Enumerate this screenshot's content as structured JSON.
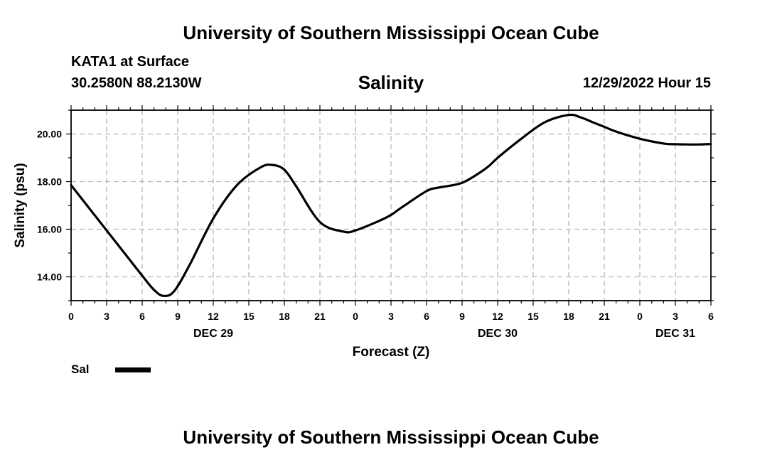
{
  "header": {
    "title": "University of Southern Mississippi Ocean Cube",
    "station": "KATA1 at Surface",
    "coordinates": "30.2580N  88.2130W",
    "datetime": "12/29/2022 Hour 15"
  },
  "footer": {
    "title": "University of Southern Mississippi Ocean Cube"
  },
  "chart_data": {
    "type": "line",
    "title": "Salinity",
    "xlabel": "Forecast (Z)",
    "ylabel": "Salinity (psu)",
    "xlim": [
      0,
      54
    ],
    "ylim": [
      13.0,
      21.0
    ],
    "grid": true,
    "x_tick_step_hours": 3,
    "x_tick_labels": [
      "0",
      "3",
      "6",
      "9",
      "12",
      "15",
      "18",
      "21",
      "0",
      "3",
      "6",
      "9",
      "12",
      "15",
      "18",
      "21",
      "0",
      "3",
      "6"
    ],
    "day_labels": [
      {
        "hour": 12,
        "label": "DEC 29"
      },
      {
        "hour": 36,
        "label": "DEC 30"
      },
      {
        "hour": 51,
        "label": "DEC 31"
      }
    ],
    "y_ticks": [
      14.0,
      16.0,
      18.0,
      20.0
    ],
    "y_tick_labels": [
      "14.00",
      "16.00",
      "18.00",
      "20.00"
    ],
    "legend": [
      {
        "name": "Sal",
        "color": "#000000"
      }
    ],
    "legend_position": "bottom-left",
    "series": [
      {
        "name": "Sal",
        "color": "#000000",
        "x": [
          0,
          1.5,
          3,
          4.5,
          6,
          7,
          7.8,
          8.7,
          10,
          12,
          14,
          16,
          17,
          18,
          19,
          21,
          23,
          24,
          26,
          27,
          28,
          30,
          31,
          33,
          35,
          36,
          38,
          40,
          42,
          43,
          44,
          45,
          46,
          48,
          50,
          51,
          52,
          53,
          54
        ],
        "values": [
          17.85,
          16.9,
          15.95,
          15.0,
          14.05,
          13.45,
          13.2,
          13.4,
          14.5,
          16.45,
          17.85,
          18.6,
          18.7,
          18.5,
          17.8,
          16.3,
          15.9,
          15.95,
          16.35,
          16.6,
          16.95,
          17.6,
          17.75,
          17.95,
          18.55,
          19.0,
          19.8,
          20.5,
          20.8,
          20.7,
          20.5,
          20.3,
          20.1,
          19.8,
          19.6,
          19.57,
          19.56,
          19.56,
          19.58
        ]
      }
    ]
  }
}
